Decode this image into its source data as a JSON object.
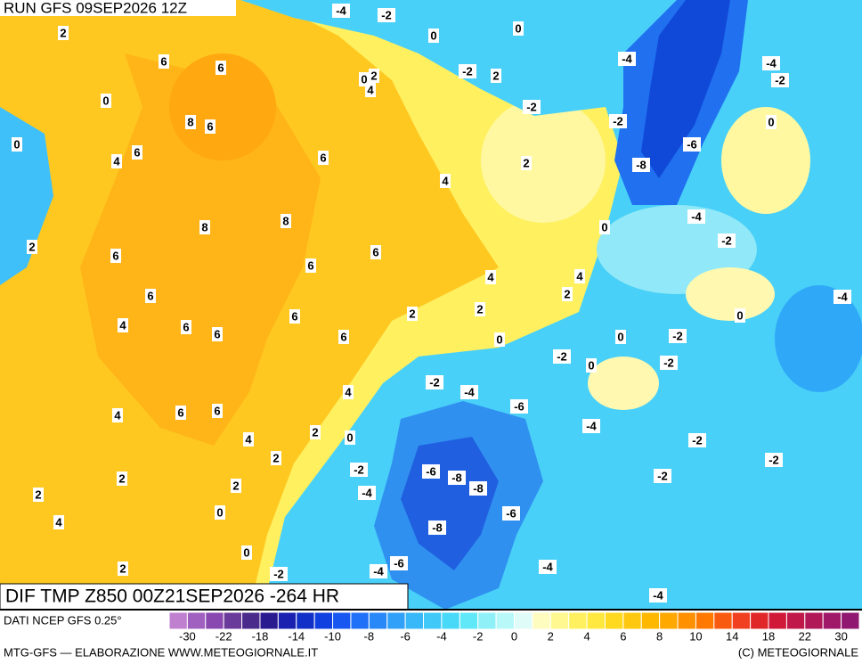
{
  "header": {
    "run": "RUN GFS 09SEP2026 12Z"
  },
  "map": {
    "title": "DIF TMP Z850 00Z21SEP2026 -264 HR",
    "contour_labels": [
      -4,
      -2,
      2,
      0,
      0,
      6,
      6,
      -2,
      2,
      2,
      0,
      4,
      -4,
      -4,
      -2,
      0,
      -2,
      8,
      6,
      -2,
      0,
      0,
      6,
      4,
      6,
      -6,
      2,
      -8,
      4,
      -4,
      8,
      8,
      0,
      -2,
      2,
      6,
      6,
      6,
      4,
      4,
      -4,
      6,
      2,
      2,
      2,
      6,
      0,
      4,
      6,
      6,
      6,
      0,
      0,
      -2,
      -2,
      0,
      -2,
      -2,
      -4,
      4,
      -6,
      4,
      6,
      6,
      -4,
      2,
      0,
      4,
      -2,
      2,
      -2,
      -2,
      -6,
      -8,
      2,
      -8,
      -2,
      2,
      -4,
      2,
      -6,
      0,
      4,
      -8,
      0,
      -6,
      -4,
      -4,
      2,
      -2,
      -4
    ]
  },
  "legend": {
    "source": "DATI NCEP GFS 0.25°",
    "colors": [
      "#c080d0",
      "#a060c0",
      "#8848b0",
      "#6a3a9a",
      "#4a2a8a",
      "#2a1a90",
      "#1a20b0",
      "#1030c8",
      "#1040e0",
      "#1858f0",
      "#2070f8",
      "#2888f8",
      "#30a0f8",
      "#38b8f8",
      "#40c8f8",
      "#48d8f8",
      "#60e8f8",
      "#90f0f8",
      "#b8f8f8",
      "#e0fcf8",
      "#fffcc0",
      "#fff890",
      "#fff060",
      "#ffe840",
      "#ffd820",
      "#ffc810",
      "#ffb800",
      "#ffa800",
      "#ff9000",
      "#ff7800",
      "#f85a10",
      "#f04020",
      "#e02828",
      "#d01838",
      "#c01848",
      "#b01858",
      "#a01868",
      "#901870"
    ],
    "ticks": [
      -30,
      -22,
      -18,
      -14,
      -10,
      -8,
      -6,
      -4,
      -2,
      0,
      2,
      4,
      6,
      8,
      10,
      14,
      18,
      22,
      30
    ]
  },
  "footer": {
    "left": "MTG-GFS — ELABORAZIONE WWW.METEOGIORNALE.IT",
    "right": "(C) METEOGIORNALE"
  }
}
